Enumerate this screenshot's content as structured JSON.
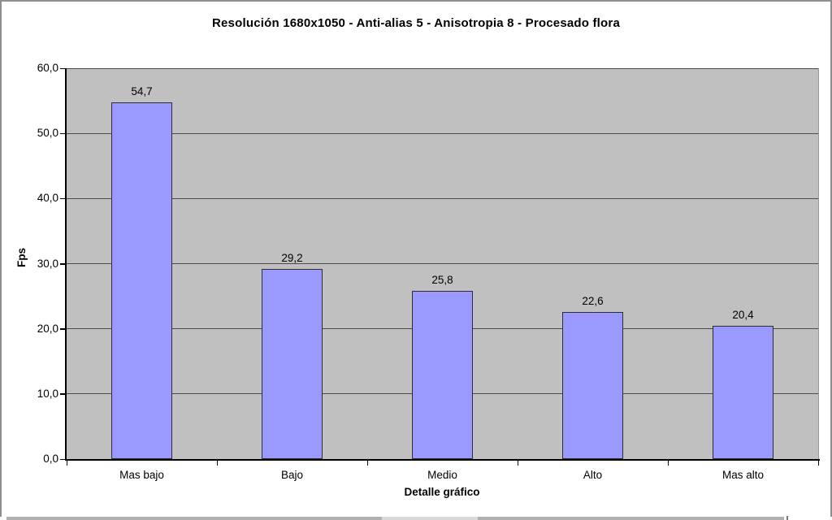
{
  "chart_data": {
    "type": "bar",
    "title": "Resolución 1680x1050 - Anti-alias 5 - Anisotropia 8 - Procesado flora",
    "categories": [
      "Mas bajo",
      "Bajo",
      "Medio",
      "Alto",
      "Mas alto"
    ],
    "values": [
      54.7,
      29.2,
      25.8,
      22.6,
      20.4
    ],
    "value_labels": [
      "54,7",
      "29,2",
      "25,8",
      "22,6",
      "20,4"
    ],
    "xlabel": "Detalle gráfico",
    "ylabel": "Fps",
    "ylim": [
      0,
      60
    ],
    "ytick_step": 10,
    "ytick_labels": [
      "0,0",
      "10,0",
      "20,0",
      "30,0",
      "40,0",
      "50,0",
      "60,0"
    ],
    "grid": true,
    "legend": "none",
    "series_count": 1,
    "colors": {
      "bar_fill": "#9999ff",
      "bar_border": "#2e2e2e",
      "plot_bg": "#c0c0c0",
      "gridline": "#4a4a4a",
      "axis_line": "#000000",
      "chart_bg": "#ffffff",
      "frame_border": "#8e8e8e",
      "plot_right_edge": "#9a9a9a",
      "text": "#000000",
      "cropped_strip": "#b0b0b0",
      "cropped_strip_light": "#d9d9d9"
    }
  }
}
